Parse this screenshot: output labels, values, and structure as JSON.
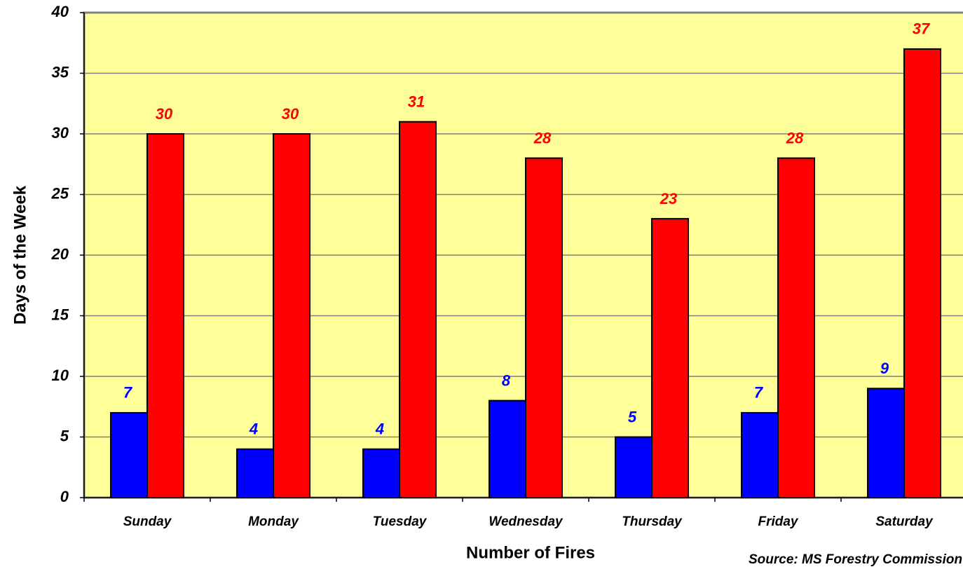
{
  "chart_data": {
    "type": "bar",
    "x_label": "Number of Fires",
    "y_label": "Days of the Week",
    "annotation": "Source: MS Forestry Commission",
    "categories": [
      "Sunday",
      "Monday",
      "Tuesday",
      "Wednesday",
      "Thursday",
      "Friday",
      "Saturday"
    ],
    "series": [
      {
        "color": "#0000ff",
        "values": [
          7,
          4,
          4,
          8,
          5,
          7,
          9
        ]
      },
      {
        "color": "#ff0000",
        "values": [
          30,
          30,
          31,
          28,
          23,
          28,
          37
        ]
      }
    ],
    "ylim": [
      0,
      40
    ],
    "yticks": [
      0,
      5,
      10,
      15,
      20,
      25,
      30,
      35,
      40
    ],
    "grid": true,
    "background": "#ffff99"
  }
}
